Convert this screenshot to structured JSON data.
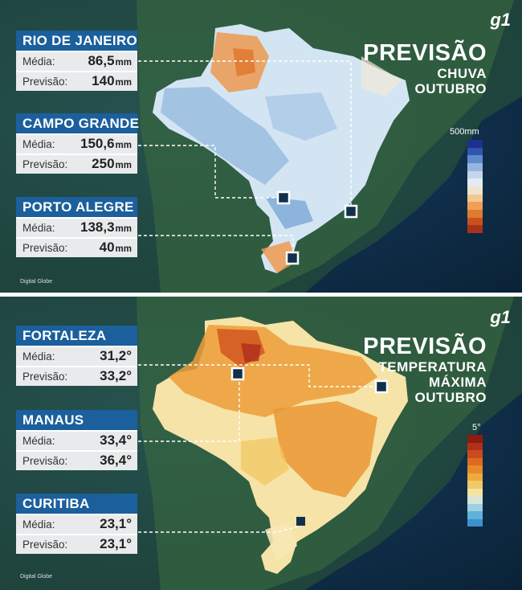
{
  "rain_panel": {
    "title": "PREVISÃO",
    "subtitle_lines": [
      "CHUVA",
      "OUTUBRO"
    ],
    "logo": "g1",
    "scale_label": "500mm",
    "credit": "Digital Globe",
    "scale_colors": [
      "#1f2f8f",
      "#2f55b0",
      "#5f8bcc",
      "#97b6dd",
      "#c3d6ec",
      "#e3ebf3",
      "#efe4cf",
      "#f4c98f",
      "#ef9f58",
      "#e07a30",
      "#c9511f",
      "#a8321a"
    ],
    "cities": [
      {
        "name": "RIO DE JANEIRO",
        "media_label": "Média:",
        "media": "86,5",
        "previsao_label": "Previsão:",
        "previsao": "140",
        "unit": "mm"
      },
      {
        "name": "CAMPO GRANDE",
        "media_label": "Média:",
        "media": "150,6",
        "previsao_label": "Previsão:",
        "previsao": "250",
        "unit": "mm"
      },
      {
        "name": "PORTO ALEGRE",
        "media_label": "Média:",
        "media": "138,3",
        "previsao_label": "Previsão:",
        "previsao": "40",
        "unit": "mm"
      }
    ]
  },
  "temp_panel": {
    "title": "PREVISÃO",
    "subtitle_lines": [
      "TEMPERATURA",
      "MÁXIMA",
      "OUTUBRO"
    ],
    "logo": "g1",
    "scale_label": "5°",
    "credit": "Digital Globe",
    "scale_colors": [
      "#8e1a10",
      "#b0301a",
      "#cc4b1e",
      "#de6a22",
      "#e88a2b",
      "#eeaa3c",
      "#f1c965",
      "#f6e2a3",
      "#d9e6d6",
      "#9fcfe3",
      "#5fb1da",
      "#3d8fd0"
    ],
    "cities": [
      {
        "name": "FORTALEZA",
        "media_label": "Média:",
        "media": "31,2°",
        "previsao_label": "Previsão:",
        "previsao": "33,2°"
      },
      {
        "name": "MANAUS",
        "media_label": "Média:",
        "media": "33,4°",
        "previsao_label": "Previsão:",
        "previsao": "36,4°"
      },
      {
        "name": "CURITIBA",
        "media_label": "Média:",
        "media": "23,1°",
        "previsao_label": "Previsão:",
        "previsao": "23,1°"
      }
    ]
  }
}
